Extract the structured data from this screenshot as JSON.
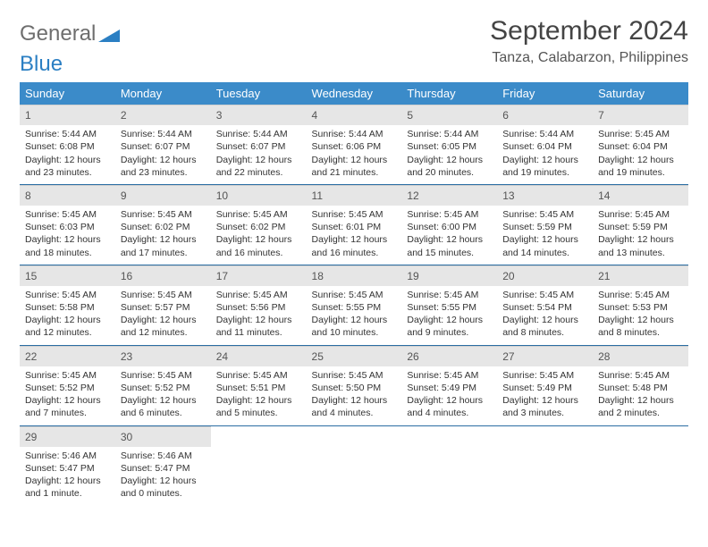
{
  "brand": {
    "part1": "General",
    "part2": "Blue"
  },
  "title": "September 2024",
  "location": "Tanza, Calabarzon, Philippines",
  "colors": {
    "header_bg": "#3b8bc9",
    "header_text": "#ffffff",
    "daynum_bg": "#e6e6e6",
    "row_divider": "#2a6da3",
    "brand_gray": "#6e6e6e",
    "brand_blue": "#2b7fc3"
  },
  "weekdays": [
    "Sunday",
    "Monday",
    "Tuesday",
    "Wednesday",
    "Thursday",
    "Friday",
    "Saturday"
  ],
  "leading_blanks": 0,
  "days": [
    {
      "n": 1,
      "sr": "5:44 AM",
      "ss": "6:08 PM",
      "dl": "12 hours and 23 minutes."
    },
    {
      "n": 2,
      "sr": "5:44 AM",
      "ss": "6:07 PM",
      "dl": "12 hours and 23 minutes."
    },
    {
      "n": 3,
      "sr": "5:44 AM",
      "ss": "6:07 PM",
      "dl": "12 hours and 22 minutes."
    },
    {
      "n": 4,
      "sr": "5:44 AM",
      "ss": "6:06 PM",
      "dl": "12 hours and 21 minutes."
    },
    {
      "n": 5,
      "sr": "5:44 AM",
      "ss": "6:05 PM",
      "dl": "12 hours and 20 minutes."
    },
    {
      "n": 6,
      "sr": "5:44 AM",
      "ss": "6:04 PM",
      "dl": "12 hours and 19 minutes."
    },
    {
      "n": 7,
      "sr": "5:45 AM",
      "ss": "6:04 PM",
      "dl": "12 hours and 19 minutes."
    },
    {
      "n": 8,
      "sr": "5:45 AM",
      "ss": "6:03 PM",
      "dl": "12 hours and 18 minutes."
    },
    {
      "n": 9,
      "sr": "5:45 AM",
      "ss": "6:02 PM",
      "dl": "12 hours and 17 minutes."
    },
    {
      "n": 10,
      "sr": "5:45 AM",
      "ss": "6:02 PM",
      "dl": "12 hours and 16 minutes."
    },
    {
      "n": 11,
      "sr": "5:45 AM",
      "ss": "6:01 PM",
      "dl": "12 hours and 16 minutes."
    },
    {
      "n": 12,
      "sr": "5:45 AM",
      "ss": "6:00 PM",
      "dl": "12 hours and 15 minutes."
    },
    {
      "n": 13,
      "sr": "5:45 AM",
      "ss": "5:59 PM",
      "dl": "12 hours and 14 minutes."
    },
    {
      "n": 14,
      "sr": "5:45 AM",
      "ss": "5:59 PM",
      "dl": "12 hours and 13 minutes."
    },
    {
      "n": 15,
      "sr": "5:45 AM",
      "ss": "5:58 PM",
      "dl": "12 hours and 12 minutes."
    },
    {
      "n": 16,
      "sr": "5:45 AM",
      "ss": "5:57 PM",
      "dl": "12 hours and 12 minutes."
    },
    {
      "n": 17,
      "sr": "5:45 AM",
      "ss": "5:56 PM",
      "dl": "12 hours and 11 minutes."
    },
    {
      "n": 18,
      "sr": "5:45 AM",
      "ss": "5:55 PM",
      "dl": "12 hours and 10 minutes."
    },
    {
      "n": 19,
      "sr": "5:45 AM",
      "ss": "5:55 PM",
      "dl": "12 hours and 9 minutes."
    },
    {
      "n": 20,
      "sr": "5:45 AM",
      "ss": "5:54 PM",
      "dl": "12 hours and 8 minutes."
    },
    {
      "n": 21,
      "sr": "5:45 AM",
      "ss": "5:53 PM",
      "dl": "12 hours and 8 minutes."
    },
    {
      "n": 22,
      "sr": "5:45 AM",
      "ss": "5:52 PM",
      "dl": "12 hours and 7 minutes."
    },
    {
      "n": 23,
      "sr": "5:45 AM",
      "ss": "5:52 PM",
      "dl": "12 hours and 6 minutes."
    },
    {
      "n": 24,
      "sr": "5:45 AM",
      "ss": "5:51 PM",
      "dl": "12 hours and 5 minutes."
    },
    {
      "n": 25,
      "sr": "5:45 AM",
      "ss": "5:50 PM",
      "dl": "12 hours and 4 minutes."
    },
    {
      "n": 26,
      "sr": "5:45 AM",
      "ss": "5:49 PM",
      "dl": "12 hours and 4 minutes."
    },
    {
      "n": 27,
      "sr": "5:45 AM",
      "ss": "5:49 PM",
      "dl": "12 hours and 3 minutes."
    },
    {
      "n": 28,
      "sr": "5:45 AM",
      "ss": "5:48 PM",
      "dl": "12 hours and 2 minutes."
    },
    {
      "n": 29,
      "sr": "5:46 AM",
      "ss": "5:47 PM",
      "dl": "12 hours and 1 minute."
    },
    {
      "n": 30,
      "sr": "5:46 AM",
      "ss": "5:47 PM",
      "dl": "12 hours and 0 minutes."
    }
  ],
  "labels": {
    "sunrise": "Sunrise:",
    "sunset": "Sunset:",
    "daylight": "Daylight:"
  }
}
